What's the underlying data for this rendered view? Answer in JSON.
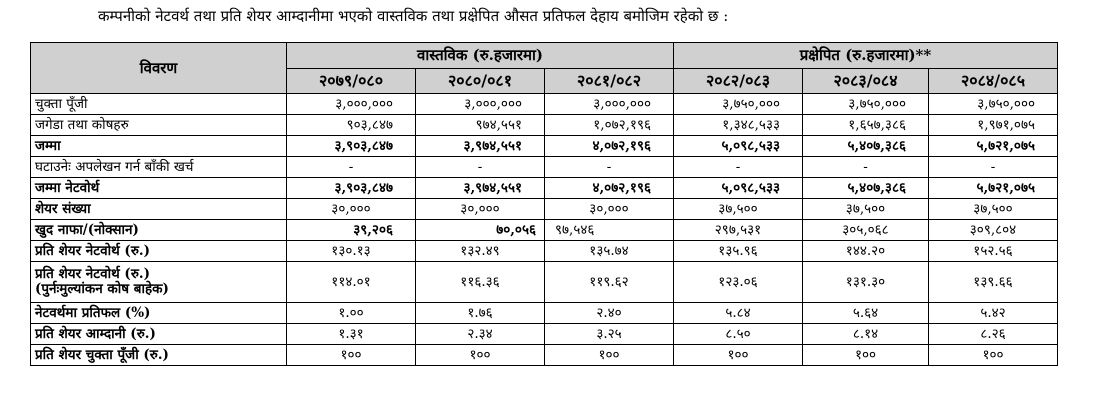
{
  "intro_text": "कम्पनीको नेटवर्थ तथा प्रति शेयर आम्दानीमा भएको वास्तविक तथा प्रक्षेपित औसत प्रतिफल देहाय बमोजिम रहेको छ :",
  "table": {
    "desc_header": "विवरण",
    "group_actual": "वास्तविक (रु.हजारमा)",
    "group_projected": "प्रक्षेपित (रु.हजारमा)**",
    "years": [
      "२०७९/०८०",
      "२०८०/०८१",
      "२०८१/०८२",
      "२०८२/०८३",
      "२०८३/०८४",
      "२०८४/०८५"
    ],
    "rows": [
      {
        "label": "चुक्ता पूँजी",
        "values": [
          "३,०००,०००",
          "३,०००,०००",
          "३,०००,०००",
          "३,७५०,०००",
          "३,७५०,०००",
          "३,७५०,०००"
        ]
      },
      {
        "label": "जगेडा तथा कोषहरु",
        "values": [
          "९०३,८४७",
          "९७४,५५१",
          "१,०७२,१९६",
          "१,३४८,५३३",
          "१,६५७,३८६",
          "१,९७१,०७५"
        ]
      },
      {
        "label": "जम्मा",
        "values": [
          "३,९०३,८४७",
          "३,९७४,५५१",
          "४,०७२,१९६",
          "५,०९८,५३३",
          "५,४०७,३८६",
          "५,७२१,०७५"
        ]
      },
      {
        "label": "घटाउनेः अपलेखन गर्न बाँकी खर्च",
        "values": [
          "-",
          "-",
          "-",
          "-",
          "-",
          "-"
        ]
      },
      {
        "label": "जम्मा नेटवोर्थ",
        "values": [
          "३,९०३,८४७",
          "३,९७४,५५१",
          "४,०७२,१९६",
          "५,०९८,५३३",
          "५,४०७,३८६",
          "५,७२१,०७५"
        ]
      },
      {
        "label": "शेयर संख्या",
        "values": [
          "३०,०००",
          "३०,०००",
          "३०,०००",
          "३७,५००",
          "३७,५००",
          "३७,५००"
        ]
      },
      {
        "label": "खुद नाफा/(नोक्सान)",
        "values": [
          "३९,२०६",
          "७०,०५६",
          "९७,५४६",
          "२९७,५३१",
          "३०५,०६८",
          "३०९,८०४"
        ]
      },
      {
        "label": "प्रति शेयर नेटवोर्थ (रु.)",
        "values": [
          "१३०.१३",
          "१३२.४९",
          "१३५.७४",
          "१३५.९६",
          "१४४.२०",
          "१५२.५६"
        ]
      },
      {
        "label_line1": "प्रति शेयर नेटवोर्थ (रु.)",
        "label_line2": "(पुर्नःमुल्यांकन कोष बाहेक)",
        "values": [
          "११४.०१",
          "११६.३६",
          "११९.६२",
          "१२३.०६",
          "१३१.३०",
          "१३९.६६"
        ]
      },
      {
        "label": "नेटवर्थमा प्रतिफल (%)",
        "values": [
          "१.००",
          "१.७६",
          "२.४०",
          "५.८४",
          "५.६४",
          "५.४२"
        ]
      },
      {
        "label": "प्रति शेयर आम्दानी (रु.)",
        "values": [
          "१.३१",
          "२.३४",
          "३.२५",
          "८.५०",
          "८.१४",
          "८.२६"
        ]
      },
      {
        "label": "प्रति शेयर चुक्ता पूँजी (रु.)",
        "values": [
          "१००",
          "१००",
          "१००",
          "१००",
          "१००",
          "१००"
        ]
      }
    ]
  }
}
